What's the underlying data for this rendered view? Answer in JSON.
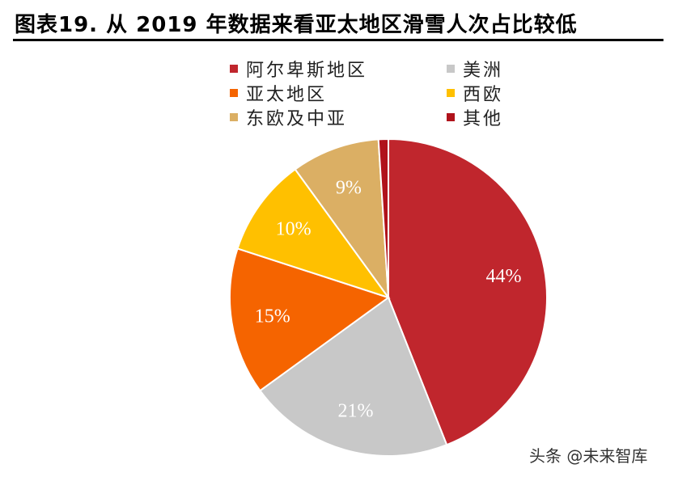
{
  "title": "图表19. 从 2019 年数据来看亚太地区滑雪人次占比较低",
  "watermark": "头条 @未来智库",
  "chart_data": {
    "type": "pie",
    "title": "",
    "legend_position": "top",
    "slices": [
      {
        "name": "阿尔卑斯地区",
        "value": 44,
        "label": "44%",
        "color": "#C0262D"
      },
      {
        "name": "美洲",
        "value": 21,
        "label": "21%",
        "color": "#C8C8C8"
      },
      {
        "name": "亚太地区",
        "value": 15,
        "label": "15%",
        "color": "#F56400"
      },
      {
        "name": "西欧",
        "value": 10,
        "label": "10%",
        "color": "#FFC000"
      },
      {
        "name": "东欧及中亚",
        "value": 9,
        "label": "9%",
        "color": "#DBAF64"
      },
      {
        "name": "其他",
        "value": 1,
        "label": "",
        "color": "#B0121B"
      }
    ]
  }
}
